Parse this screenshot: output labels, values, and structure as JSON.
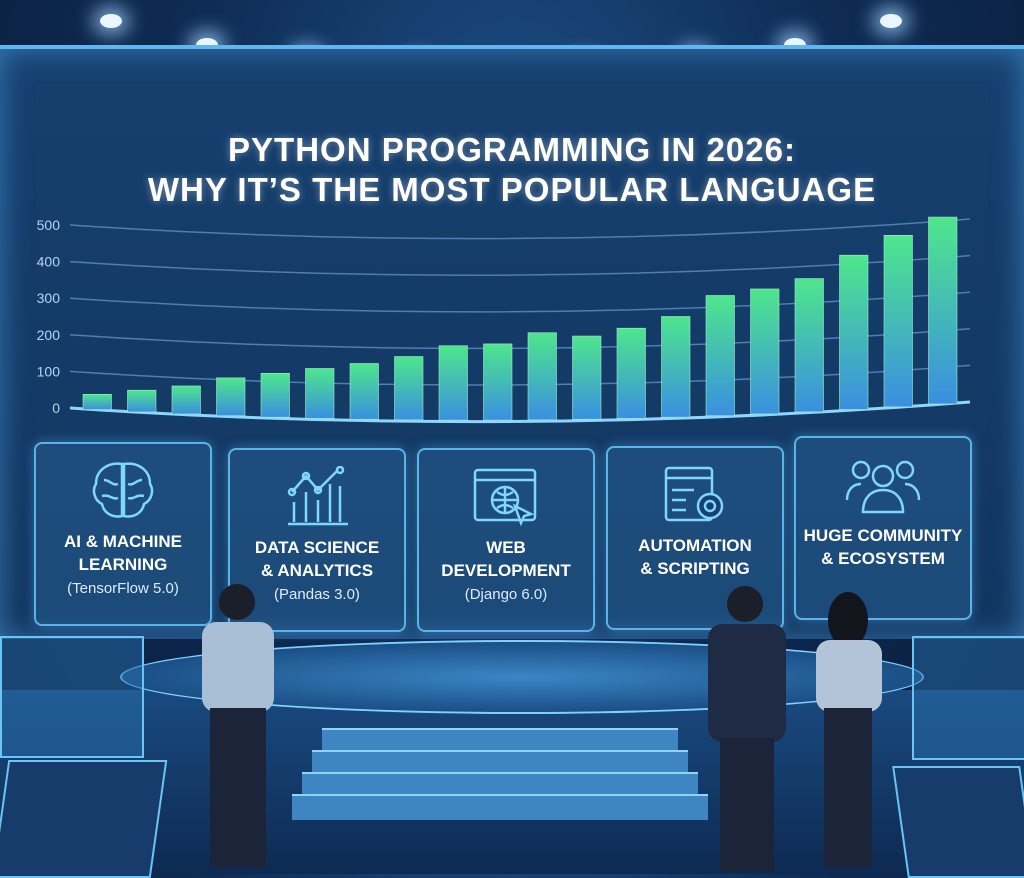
{
  "chart_data": {
    "type": "bar",
    "title": "PYTHON PROGRAMMING IN 2026:\nWHY IT'S THE MOST POPULAR LANGUAGE",
    "title_lines": [
      "PYTHON PROGRAMMING IN 2026:",
      "WHY IT’S THE MOST POPULAR LANGUAGE"
    ],
    "xlabel": "",
    "ylabel": "",
    "ylim": [
      0,
      500
    ],
    "yticks": [
      "0",
      "100",
      "200",
      "300",
      "400",
      "500"
    ],
    "grid": true,
    "values": [
      40,
      55,
      70,
      95,
      110,
      125,
      140,
      160,
      190,
      195,
      225,
      215,
      235,
      265,
      320,
      335,
      360,
      420,
      470,
      515
    ],
    "bar_gradient": [
      "#4ee68c",
      "#3a8fe0"
    ]
  },
  "cards": [
    {
      "icon": "brain-icon",
      "title": [
        "AI & MACHINE",
        "LEARNING"
      ],
      "sub": "(TensorFlow 5.0)"
    },
    {
      "icon": "analytics-chart-icon",
      "title": [
        "DATA SCIENCE",
        "& ANALYTICS"
      ],
      "sub": "(Pandas 3.0)"
    },
    {
      "icon": "browser-globe-icon",
      "title": [
        "WEB",
        "DEVELOPMENT"
      ],
      "sub": "(Django 6.0)"
    },
    {
      "icon": "script-gear-icon",
      "title": [
        "AUTOMATION",
        "& SCRIPTING"
      ],
      "sub": ""
    },
    {
      "icon": "community-icon",
      "title": [
        "HUGE COMMUNITY",
        "& ECOSYSTEM"
      ],
      "sub": ""
    }
  ],
  "colors": {
    "accent": "#5ab4e8",
    "background": "#0f2c55"
  }
}
